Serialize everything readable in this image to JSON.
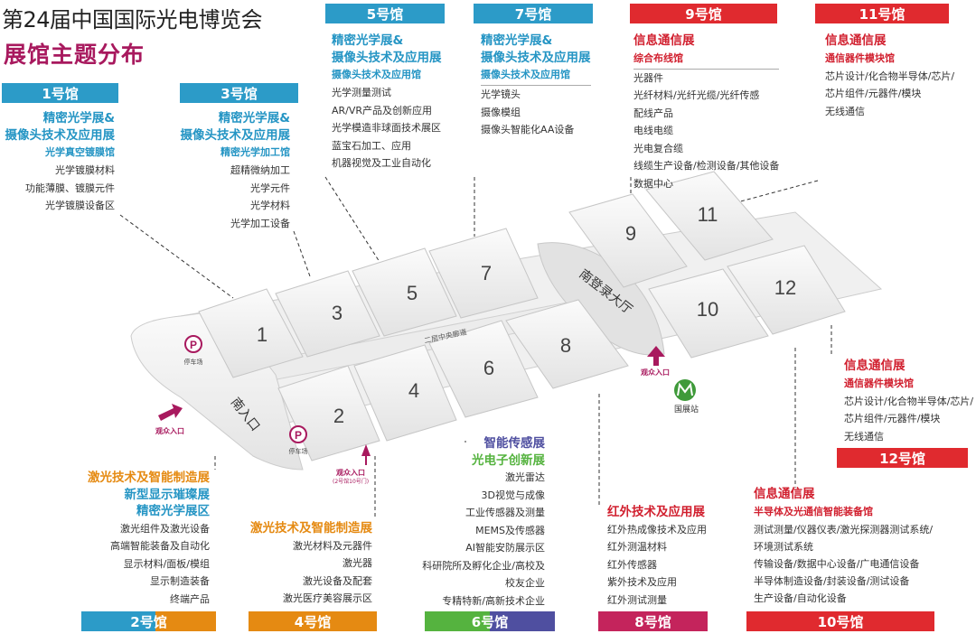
{
  "title": "第24届中国国际光电博览会",
  "subtitle": "展馆主题分布",
  "colors": {
    "blue": "#2c9bc8",
    "red": "#e02a2f",
    "magenta": "#a8195e",
    "orange": "#e58a12",
    "purple": "#4f4fa0",
    "green": "#55b33f",
    "crimson": "#c4245c"
  },
  "halls": {
    "h1": {
      "label": "1号馆",
      "lines": [
        "精密光学展&",
        "摄像头技术及应用展"
      ],
      "sub": "光学真空镀膜馆",
      "items": [
        "光学镀膜材料",
        "功能薄膜、镀膜元件",
        "光学镀膜设备区"
      ]
    },
    "h3": {
      "label": "3号馆",
      "lines": [
        "精密光学展&",
        "摄像头技术及应用展"
      ],
      "sub": "精密光学加工馆",
      "items": [
        "超精微纳加工",
        "光学元件",
        "光学材料",
        "光学加工设备"
      ]
    },
    "h5": {
      "label": "5号馆",
      "lines": [
        "精密光学展&",
        "摄像头技术及应用展"
      ],
      "sub": "摄像头技术及应用馆",
      "items": [
        "光学测量测试",
        "AR/VR产品及创新应用",
        "光学模造非球面技术展区",
        "蓝宝石加工、应用",
        "机器视觉及工业自动化"
      ]
    },
    "h7": {
      "label": "7号馆",
      "lines": [
        "精密光学展&",
        "摄像头技术及应用展"
      ],
      "sub": "摄像头技术及应用馆",
      "items": [
        "光学镜头",
        "摄像模组",
        "摄像头智能化AA设备"
      ]
    },
    "h9": {
      "label": "9号馆",
      "lines": [
        "信息通信展"
      ],
      "sub": "综合布线馆",
      "items": [
        "光器件",
        "光纤材料/光纤光缆/光纤传感",
        "配线产品",
        "电线电缆",
        "光电复合缆",
        "线缆生产设备/检测设备/其他设备",
        "数据中心"
      ]
    },
    "h11": {
      "label": "11号馆",
      "lines": [
        "信息通信展"
      ],
      "sub": "通信器件模块馆",
      "items": [
        "芯片设计/化合物半导体/芯片/",
        "芯片组件/元器件/模块",
        "无线通信"
      ]
    },
    "h12": {
      "label": "12号馆",
      "lines": [
        "信息通信展"
      ],
      "sub": "通信器件模块馆",
      "items": [
        "芯片设计/化合物半导体/芯片/",
        "芯片组件/元器件/模块",
        "无线通信"
      ]
    },
    "h10": {
      "label": "10号馆",
      "lines": [
        "信息通信展"
      ],
      "sub": "半导体及光通信智能装备馆",
      "items": [
        "测试测量/仪器仪表/激光探测器测试系统/",
        "环境测试系统",
        "传输设备/数据中心设备/广电通信设备",
        "半导体制造设备/封装设备/测试设备",
        "生产设备/自动化设备"
      ]
    },
    "h8": {
      "label": "8号馆",
      "lines": [
        "红外技术及应用展"
      ],
      "items": [
        "红外热成像技术及应用",
        "红外测温材料",
        "红外传感器",
        "紫外技术及应用",
        "红外测试测量"
      ]
    },
    "h6": {
      "label": "6号馆",
      "lines": [
        "智能传感展",
        "光电子创新展"
      ],
      "items": [
        "激光雷达",
        "3D视觉与成像",
        "工业传感器及测量",
        "MEMS及传感器",
        "AI智能安防展示区",
        "科研院所及孵化企业/高校及",
        "校友企业",
        "专精特新/高新技术企业"
      ]
    },
    "h4": {
      "label": "4号馆",
      "lines": [
        "激光技术及智能制造展"
      ],
      "items": [
        "激光材料及元器件",
        "激光器",
        "激光设备及配套",
        "激光医疗美容展示区"
      ]
    },
    "h2": {
      "label": "2号馆",
      "lines": [
        "激光技术及智能制造展",
        "新型显示璀璨展",
        "精密光学展区"
      ],
      "items": [
        "激光组件及激光设备",
        "高端智能装备及自动化",
        "显示材料/面板/模组",
        "显示制造装备",
        "终端产品"
      ]
    }
  },
  "map": {
    "numbers": [
      "1",
      "2",
      "3",
      "4",
      "5",
      "6",
      "7",
      "8",
      "9",
      "10",
      "11",
      "12"
    ],
    "corridor": "二层中央廊道",
    "south_entrance": "南入口",
    "lobby": "南登录大厅",
    "parking": "停车场",
    "parking_symbol": "P",
    "visitor_entrance": "观众入口",
    "visitor_entrance_note": "(2号馆10号门)",
    "metro": "国展站"
  }
}
